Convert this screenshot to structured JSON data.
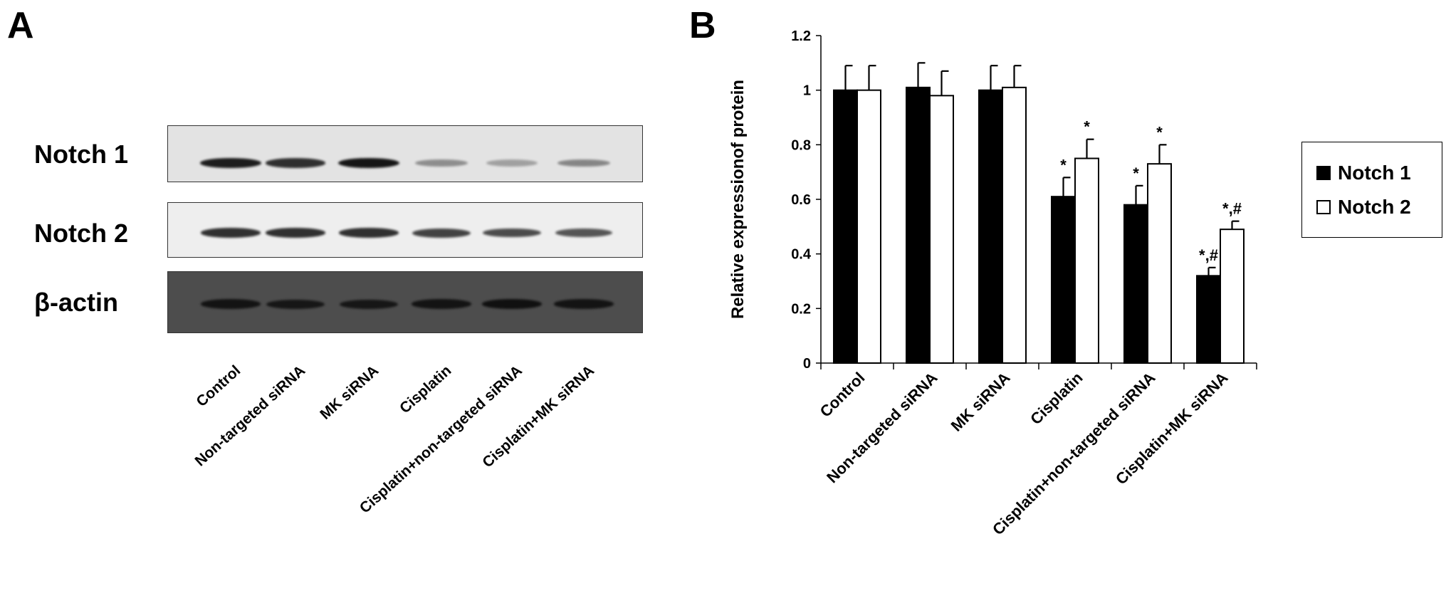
{
  "panels": {
    "a_label": "A",
    "b_label": "B"
  },
  "blot": {
    "rows": [
      {
        "label": "Notch 1",
        "background": "#e3e3e3",
        "band_color": "#151515",
        "band_intensity": [
          0.95,
          0.85,
          1.0,
          0.3,
          0.2,
          0.35
        ]
      },
      {
        "label": "Notch 2",
        "background": "#eeeeee",
        "band_color": "#202020",
        "band_intensity": [
          0.9,
          0.9,
          0.9,
          0.8,
          0.75,
          0.7
        ]
      },
      {
        "label": "β-actin",
        "background": "#4d4d4d",
        "band_color": "#0b0b0b",
        "band_intensity": [
          0.85,
          0.8,
          0.8,
          0.85,
          0.9,
          0.85
        ]
      }
    ],
    "lanes": [
      "Control",
      "Non-targeted siRNA",
      "MK siRNA",
      "Cisplatin",
      "Cisplatin+non-targeted siRNA",
      "Cisplatin+MK siRNA"
    ]
  },
  "chart_data": {
    "type": "bar",
    "categories": [
      "Control",
      "Non-targeted siRNA",
      "MK siRNA",
      "Cisplatin",
      "Cisplatin+non-targeted siRNA",
      "Cisplatin+MK siRNA"
    ],
    "series": [
      {
        "name": "Notch 1",
        "color": "#000000",
        "values": [
          1.0,
          1.01,
          1.0,
          0.61,
          0.58,
          0.32
        ],
        "errors": [
          0.09,
          0.09,
          0.09,
          0.07,
          0.07,
          0.03
        ],
        "annotations": [
          "",
          "",
          "",
          "*",
          "*",
          "*,#"
        ]
      },
      {
        "name": "Notch 2",
        "color": "#ffffff",
        "values": [
          1.0,
          0.98,
          1.01,
          0.75,
          0.73,
          0.49
        ],
        "errors": [
          0.09,
          0.09,
          0.08,
          0.07,
          0.07,
          0.03
        ],
        "annotations": [
          "",
          "",
          "",
          "*",
          "*",
          "*,#"
        ]
      }
    ],
    "ylabel": "Relative expressionof protein",
    "ylim": [
      0,
      1.2
    ],
    "yticks": [
      "0",
      "0.2",
      "0.4",
      "0.6",
      "0.8",
      "1",
      "1.2"
    ],
    "legend_position": "right",
    "grid": false
  }
}
